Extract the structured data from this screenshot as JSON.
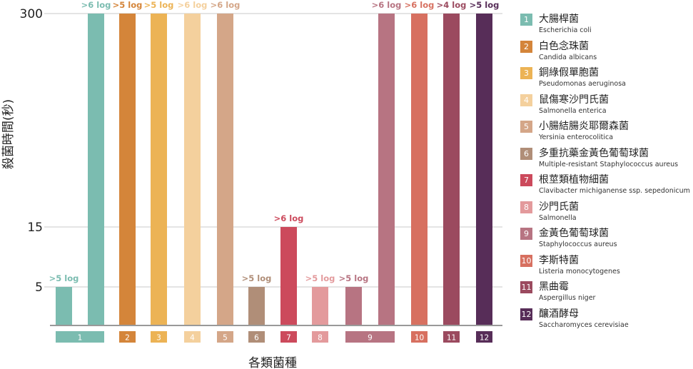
{
  "chart_data": {
    "type": "bar",
    "ylabel": "殺菌時間(秒)",
    "xlabel": "各類菌種",
    "y_ticks": [
      "5",
      "15",
      "300"
    ],
    "groups": [
      {
        "label": "1",
        "color": "#7bbcb0",
        "bars": [
          0
        ]
      },
      {
        "label": "1",
        "color": "#7bbcb0",
        "bars": [
          1
        ]
      },
      {
        "label": "2",
        "color": "#d4853a",
        "bars": [
          2
        ]
      },
      {
        "label": "3",
        "color": "#ecb355",
        "bars": [
          3
        ]
      },
      {
        "label": "4",
        "color": "#f4d09d",
        "bars": [
          4
        ]
      },
      {
        "label": "5",
        "color": "#d4a688",
        "bars": [
          5
        ]
      },
      {
        "label": "6",
        "color": "#b08e78",
        "bars": [
          6
        ]
      },
      {
        "label": "7",
        "color": "#cc4a5c",
        "bars": [
          7
        ]
      },
      {
        "label": "8",
        "color": "#e39a9c",
        "bars": [
          8
        ]
      },
      {
        "label": "9",
        "color": "#b77482",
        "bars": [
          9,
          10
        ]
      },
      {
        "label": "10",
        "color": "#d77060",
        "bars": [
          11
        ]
      },
      {
        "label": "11",
        "color": "#9b4a5f",
        "bars": [
          12
        ]
      },
      {
        "label": "12",
        "color": "#572d58",
        "bars": [
          13
        ]
      }
    ],
    "bars": [
      {
        "species": "1",
        "value": "5",
        "label": ">5 log",
        "color": "#7bbcb0"
      },
      {
        "species": "1",
        "value": "300",
        "label": ">6 log",
        "color": "#7bbcb0"
      },
      {
        "species": "2",
        "value": "300",
        "label": ">5 log",
        "color": "#d4853a"
      },
      {
        "species": "3",
        "value": "300",
        "label": ">5 log",
        "color": "#ecb355"
      },
      {
        "species": "4",
        "value": "300",
        "label": ">6 log",
        "color": "#f4d09d"
      },
      {
        "species": "5",
        "value": "300",
        "label": ">6 log",
        "color": "#d4a688"
      },
      {
        "species": "6",
        "value": "5",
        "label": ">5 log",
        "color": "#b08e78"
      },
      {
        "species": "7",
        "value": "15",
        "label": ">6 log",
        "color": "#cc4a5c"
      },
      {
        "species": "8",
        "value": "5",
        "label": ">5 log",
        "color": "#e39a9c"
      },
      {
        "species": "9",
        "value": "5",
        "label": ">5 log",
        "color": "#b77482"
      },
      {
        "species": "9",
        "value": "300",
        "label": ">6 log",
        "color": "#b77482"
      },
      {
        "species": "10",
        "value": "300",
        "label": ">6 log",
        "color": "#d77060"
      },
      {
        "species": "11",
        "value": "300",
        "label": ">4 log",
        "color": "#9b4a5f"
      },
      {
        "species": "12",
        "value": "300",
        "label": ">5 log",
        "color": "#572d58"
      }
    ]
  },
  "legend": [
    {
      "num": "1",
      "zh": "大腸桿菌",
      "en": "Escherichia coli",
      "color": "#7bbcb0"
    },
    {
      "num": "2",
      "zh": "白色念珠菌",
      "en": "Candida albicans",
      "color": "#d4853a"
    },
    {
      "num": "3",
      "zh": "銅綠假單胞菌",
      "en": "Pseudomonas aeruginosa",
      "color": "#ecb355"
    },
    {
      "num": "4",
      "zh": "鼠傷寒沙門氏菌",
      "en": "Salmonella enterica",
      "color": "#f4d09d"
    },
    {
      "num": "5",
      "zh": "小腸結腸炎耶爾森菌",
      "en": "Yersinia enterocolitica",
      "color": "#d4a688"
    },
    {
      "num": "6",
      "zh": "多重抗藥金黃色葡萄球菌",
      "en": "Multiple-resistant Staphylococcus aureus",
      "color": "#b08e78"
    },
    {
      "num": "7",
      "zh": "根莖類植物細菌",
      "en": "Clavibacter michiganense ssp. sepedonicum",
      "color": "#cc4a5c"
    },
    {
      "num": "8",
      "zh": "沙門氏菌",
      "en": "Salmonella",
      "color": "#e39a9c"
    },
    {
      "num": "9",
      "zh": "金黃色葡萄球菌",
      "en": "Staphylococcus aureus",
      "color": "#b77482"
    },
    {
      "num": "10",
      "zh": "李斯特菌",
      "en": "Listeria monocytogenes",
      "color": "#d77060"
    },
    {
      "num": "11",
      "zh": "黑曲霉",
      "en": "Aspergillus niger",
      "color": "#9b4a5f"
    },
    {
      "num": "12",
      "zh": "釀酒酵母",
      "en": "Saccharomyces cerevisiae",
      "color": "#572d58"
    }
  ]
}
